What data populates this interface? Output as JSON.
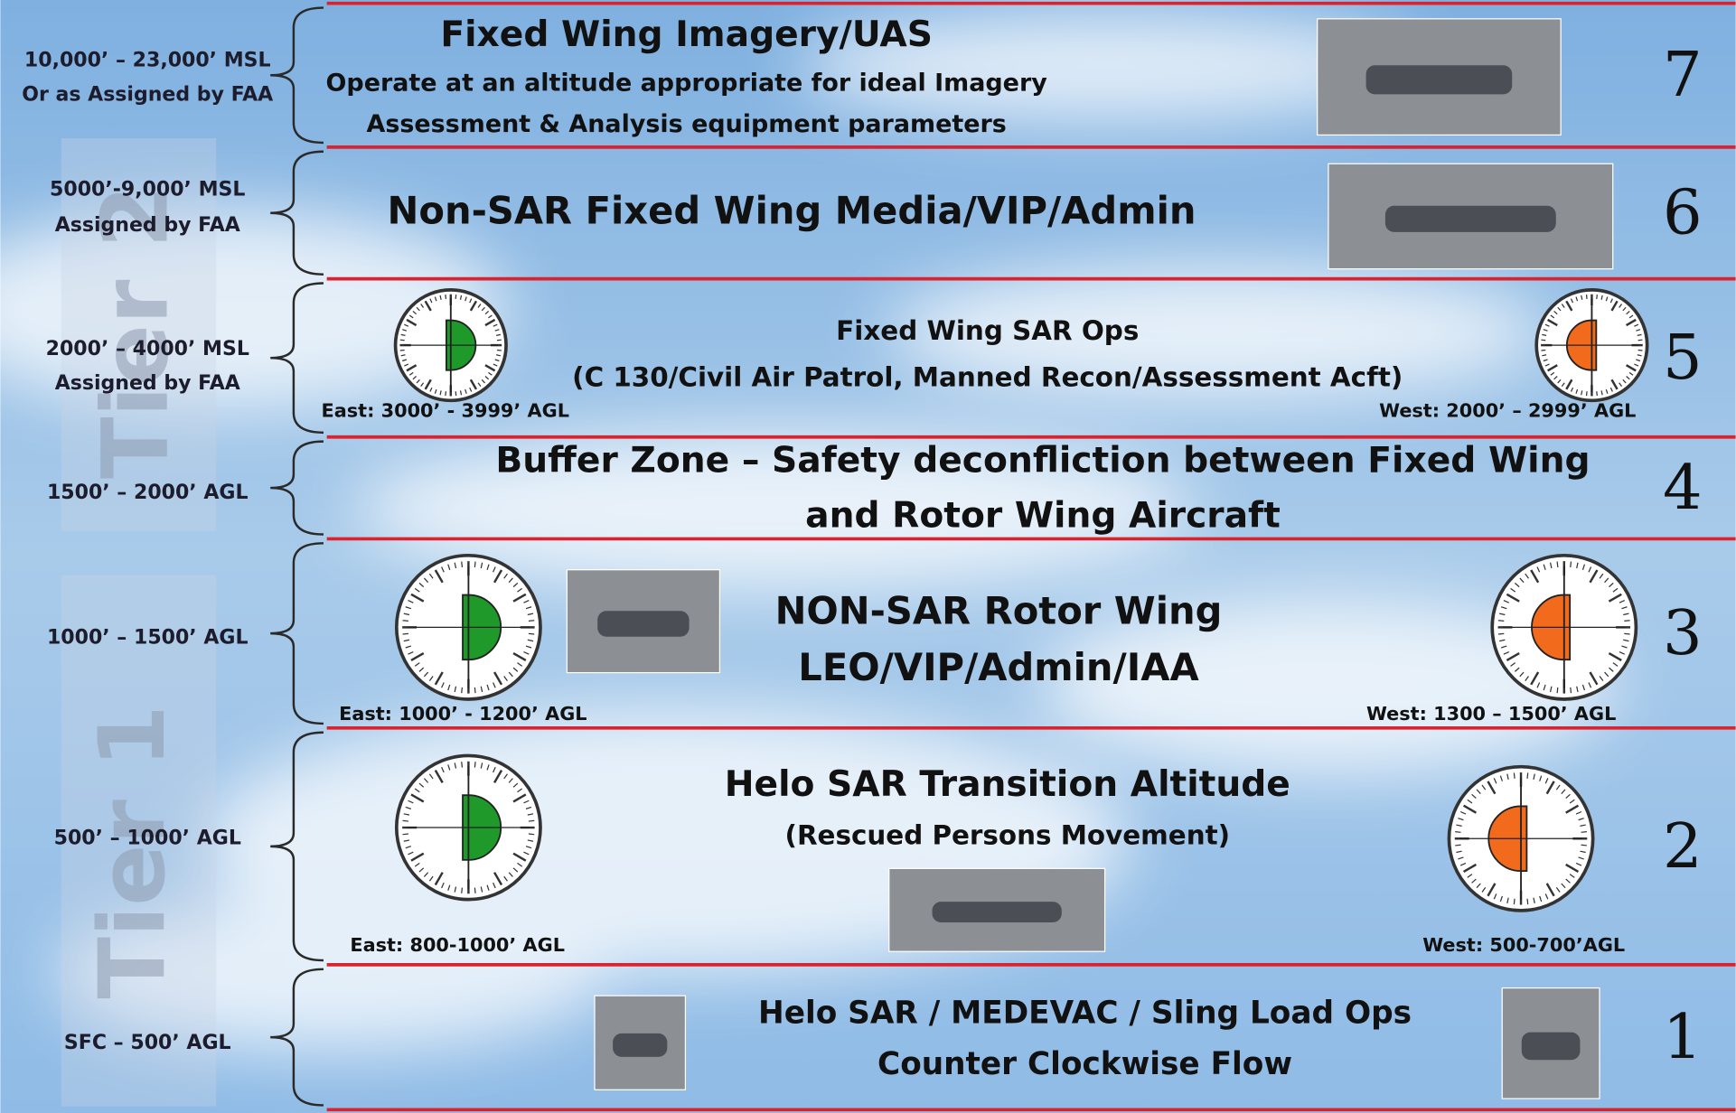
{
  "tiers": [
    "Tier 2",
    "Tier 1"
  ],
  "layers": [
    {
      "number": "7",
      "altitude": [
        "10,000’ – 23,000’ MSL",
        "Or as Assigned by FAA"
      ],
      "lines": [
        "Fixed Wing Imagery/UAS",
        "Operate at an altitude appropriate for ideal Imagery",
        "Assessment & Analysis equipment parameters"
      ]
    },
    {
      "number": "6",
      "altitude": [
        "5000’-9,000’ MSL",
        "Assigned by FAA"
      ],
      "lines": [
        "Non-SAR Fixed Wing Media/VIP/Admin"
      ]
    },
    {
      "number": "5",
      "altitude": [
        "2000’ – 4000’ MSL",
        "Assigned by FAA"
      ],
      "lines": [
        "Fixed Wing SAR Ops",
        "(C 130/Civil Air Patrol, Manned Recon/Assessment Acft)"
      ],
      "east": "East:  3000’ - 3999’ AGL",
      "west": "West:  2000’ – 2999’ AGL"
    },
    {
      "number": "4",
      "altitude": [
        "1500’ – 2000’ AGL"
      ],
      "lines": [
        "Buffer Zone – Safety deconfliction between Fixed Wing",
        "and Rotor Wing Aircraft"
      ]
    },
    {
      "number": "3",
      "altitude": [
        "1000’ – 1500’ AGL"
      ],
      "lines": [
        "NON-SAR Rotor Wing",
        "LEO/VIP/Admin/IAA"
      ],
      "east": "East:  1000’ - 1200’ AGL",
      "west": "West:  1300 – 1500’ AGL"
    },
    {
      "number": "2",
      "altitude": [
        "500’ – 1000’ AGL"
      ],
      "lines": [
        "Helo SAR Transition Altitude",
        "(Rescued Persons Movement)"
      ],
      "east": "East:  800-1000’ AGL",
      "west": "West: 500-700’AGL"
    },
    {
      "number": "1",
      "altitude": [
        "SFC – 500’ AGL"
      ],
      "lines": [
        "Helo SAR / MEDEVAC / Sling Load Ops",
        "Counter Clockwise Flow"
      ]
    }
  ]
}
